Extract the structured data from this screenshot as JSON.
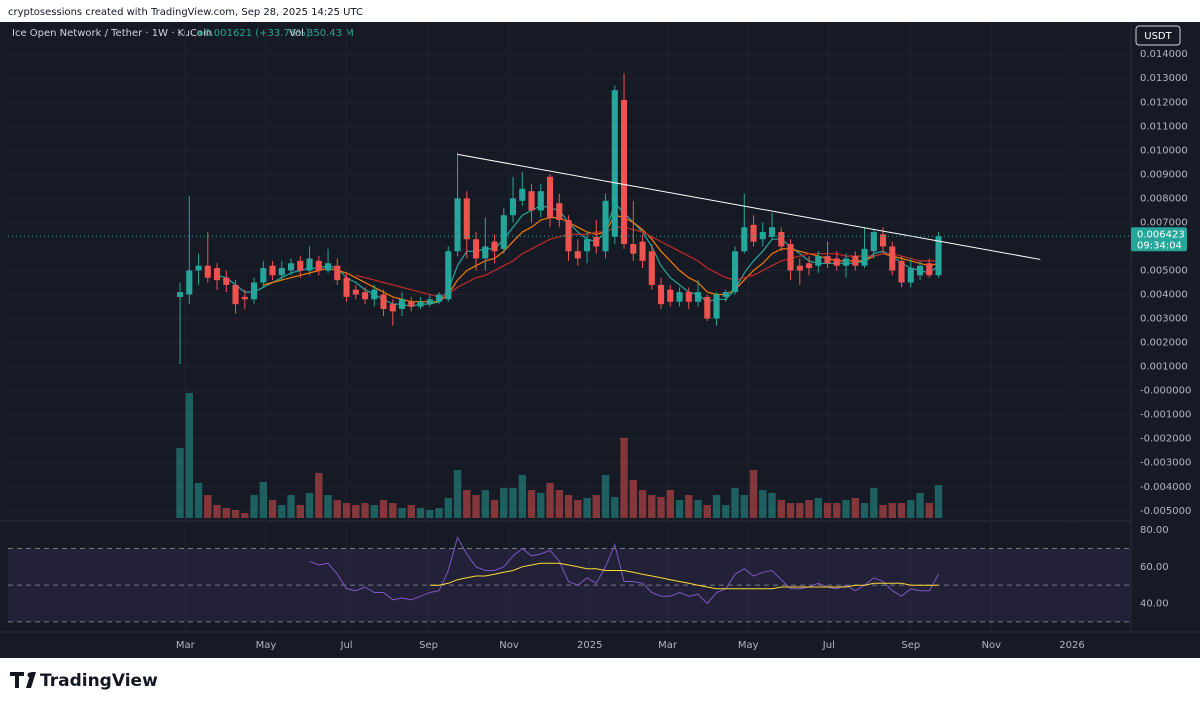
{
  "header": {
    "attribution": "cryptosessions created with TradingView.com, Sep 28, 2025 14:25 UTC",
    "symbol": "Ice Open Network / Tether · 1W · KuCoin",
    "change": "+0.001621 (+33.76%)",
    "volume_label": "Vol",
    "volume": "350.43 M",
    "currency": "USDT",
    "countdown": "09:34:04",
    "brand": "TradingView"
  },
  "chart_data": {
    "type": "candlestick",
    "open": [
      0.0039,
      0.004,
      0.005,
      0.0052,
      0.0051,
      0.0047,
      0.0044,
      0.0039,
      0.0038,
      0.0045,
      0.0052,
      0.0048,
      0.005,
      0.0054,
      0.005,
      0.0054,
      0.005,
      0.0052,
      0.0047,
      0.0042,
      0.0041,
      0.0038,
      0.004,
      0.0036,
      0.0034,
      0.0037,
      0.0035,
      0.0036,
      0.0037,
      0.0038,
      0.0058,
      0.008,
      0.0063,
      0.0055,
      0.0062,
      0.0059,
      0.0073,
      0.0079,
      0.0083,
      0.0075,
      0.0089,
      0.0078,
      0.0071,
      0.0058,
      0.0058,
      0.0064,
      0.0058,
      0.0064,
      0.0121,
      0.0061,
      0.0062,
      0.0058,
      0.0044,
      0.0042,
      0.0037,
      0.0041,
      0.0037,
      0.0039,
      0.003,
      0.0039,
      0.0041,
      0.0058,
      0.0069,
      0.0063,
      0.0064,
      0.0066,
      0.0061,
      0.0052,
      0.0053,
      0.0052,
      0.0056,
      0.0055,
      0.0052,
      0.0056,
      0.0052,
      0.0058,
      0.0065,
      0.006,
      0.0054,
      0.0045,
      0.0048,
      0.0053,
      0.004802
    ],
    "high": [
      0.0045,
      0.0081,
      0.0057,
      0.0066,
      0.0053,
      0.005,
      0.0046,
      0.0042,
      0.0047,
      0.0054,
      0.0054,
      0.0054,
      0.0055,
      0.0056,
      0.006,
      0.0056,
      0.0059,
      0.0055,
      0.0049,
      0.0044,
      0.0043,
      0.0044,
      0.0042,
      0.0038,
      0.0041,
      0.0039,
      0.0039,
      0.004,
      0.0041,
      0.006,
      0.0099,
      0.0083,
      0.0066,
      0.0072,
      0.0065,
      0.0076,
      0.0089,
      0.0091,
      0.0086,
      0.0086,
      0.009,
      0.0082,
      0.0073,
      0.0063,
      0.0066,
      0.0071,
      0.0082,
      0.0127,
      0.0132,
      0.0079,
      0.0065,
      0.0061,
      0.0047,
      0.0044,
      0.0043,
      0.0043,
      0.0046,
      0.004,
      0.0041,
      0.0042,
      0.006,
      0.0082,
      0.0073,
      0.007,
      0.0074,
      0.0068,
      0.0063,
      0.0055,
      0.0056,
      0.0058,
      0.0062,
      0.0058,
      0.0057,
      0.0058,
      0.0068,
      0.0067,
      0.0068,
      0.0062,
      0.0056,
      0.0055,
      0.0054,
      0.0055,
      0.0066
    ],
    "low": [
      0.0011,
      0.0036,
      0.0044,
      0.0045,
      0.0042,
      0.0041,
      0.0032,
      0.0034,
      0.0036,
      0.0043,
      0.0046,
      0.0046,
      0.0048,
      0.0047,
      0.0048,
      0.0048,
      0.0049,
      0.0044,
      0.0037,
      0.0038,
      0.0036,
      0.0035,
      0.0031,
      0.0027,
      0.0031,
      0.0033,
      0.0034,
      0.0035,
      0.0036,
      0.0037,
      0.0056,
      0.0055,
      0.005,
      0.005,
      0.0053,
      0.0057,
      0.007,
      0.0077,
      0.007,
      0.0072,
      0.0068,
      0.0068,
      0.0054,
      0.0052,
      0.0053,
      0.0057,
      0.0055,
      0.0061,
      0.0059,
      0.0054,
      0.0051,
      0.0042,
      0.0034,
      0.0035,
      0.0035,
      0.0034,
      0.0035,
      0.0029,
      0.0027,
      0.0037,
      0.004,
      0.0057,
      0.006,
      0.006,
      0.0063,
      0.0058,
      0.0046,
      0.0044,
      0.0048,
      0.0049,
      0.0051,
      0.005,
      0.0047,
      0.005,
      0.0051,
      0.0055,
      0.0057,
      0.0048,
      0.0043,
      0.0043,
      0.0046,
      0.0047,
      0.0047
    ],
    "close": [
      0.0041,
      0.005,
      0.0052,
      0.0047,
      0.0046,
      0.0044,
      0.0036,
      0.0038,
      0.0045,
      0.0051,
      0.0048,
      0.0051,
      0.0053,
      0.005,
      0.0055,
      0.005,
      0.0053,
      0.0046,
      0.0039,
      0.004,
      0.0038,
      0.0042,
      0.0034,
      0.0033,
      0.0038,
      0.0035,
      0.0037,
      0.0038,
      0.004,
      0.0058,
      0.008,
      0.0063,
      0.0055,
      0.006,
      0.0058,
      0.0073,
      0.008,
      0.0084,
      0.0075,
      0.0083,
      0.0072,
      0.0071,
      0.0058,
      0.0055,
      0.0063,
      0.006,
      0.0079,
      0.0125,
      0.0061,
      0.0057,
      0.0054,
      0.0044,
      0.0036,
      0.0037,
      0.0041,
      0.0037,
      0.0041,
      0.003,
      0.004,
      0.0041,
      0.0058,
      0.0068,
      0.0062,
      0.0066,
      0.0068,
      0.006,
      0.005,
      0.005,
      0.0051,
      0.0056,
      0.0053,
      0.0052,
      0.0055,
      0.0052,
      0.0059,
      0.0066,
      0.006,
      0.005,
      0.0045,
      0.0051,
      0.0052,
      0.0048,
      0.006423
    ],
    "volume": [
      743,
      1327,
      372,
      244,
      138,
      106,
      85,
      53,
      244,
      382,
      191,
      138,
      244,
      138,
      266,
      478,
      244,
      191,
      159,
      138,
      159,
      138,
      191,
      159,
      106,
      138,
      106,
      85,
      106,
      212,
      510,
      297,
      244,
      297,
      191,
      319,
      319,
      457,
      297,
      266,
      372,
      297,
      244,
      191,
      212,
      244,
      457,
      223,
      850,
      404,
      297,
      244,
      223,
      297,
      191,
      244,
      191,
      138,
      244,
      138,
      319,
      244,
      510,
      297,
      266,
      191,
      159,
      159,
      191,
      212,
      159,
      159,
      191,
      212,
      159,
      319,
      138,
      159,
      159,
      191,
      266,
      159,
      350.43
    ],
    "up_color": "#26a69a",
    "down_color": "#ef5350",
    "ylim": [
      -0.0053,
      0.0143
    ],
    "yticks": [
      {
        "value": 0.014,
        "label": "0.014000"
      },
      {
        "value": 0.013,
        "label": "0.013000"
      },
      {
        "value": 0.012,
        "label": "0.012000"
      },
      {
        "value": 0.011,
        "label": "0.011000"
      },
      {
        "value": 0.01,
        "label": "0.010000"
      },
      {
        "value": 0.009,
        "label": "0.009000"
      },
      {
        "value": 0.008,
        "label": "0.008000"
      },
      {
        "value": 0.007,
        "label": "0.007000"
      },
      {
        "value": 0.005,
        "label": "0.005000"
      },
      {
        "value": 0.004,
        "label": "0.004000"
      },
      {
        "value": 0.003,
        "label": "0.003000"
      },
      {
        "value": 0.002,
        "label": "0.002000"
      },
      {
        "value": 0.001,
        "label": "0.001000"
      },
      {
        "value": 0,
        "label": "-0.000000"
      },
      {
        "value": -0.001,
        "label": "-0.001000"
      },
      {
        "value": -0.002,
        "label": "-0.002000"
      },
      {
        "value": -0.003,
        "label": "-0.003000"
      },
      {
        "value": -0.004,
        "label": "-0.004000"
      },
      {
        "value": -0.005,
        "label": "-0.005000"
      }
    ],
    "xlim": [
      -18.6,
      102.7
    ],
    "xticks": [
      {
        "value": 0.57,
        "label": "Mar"
      },
      {
        "value": 9.29,
        "label": "May"
      },
      {
        "value": 18,
        "label": "Jul"
      },
      {
        "value": 26.86,
        "label": "Sep"
      },
      {
        "value": 35.57,
        "label": "Nov"
      },
      {
        "value": 44.29,
        "label": "2025"
      },
      {
        "value": 52.71,
        "label": "Mar"
      },
      {
        "value": 61.43,
        "label": "May"
      },
      {
        "value": 70.14,
        "label": "Jul"
      },
      {
        "value": 79,
        "label": "Sep"
      },
      {
        "value": 87.71,
        "label": "Nov"
      },
      {
        "value": 96.43,
        "label": "2026"
      }
    ],
    "grid": true,
    "moving_averages": [
      {
        "color": "#26a69a",
        "values": [
          null,
          null,
          null,
          null,
          0.0048,
          0.0047,
          0.0044,
          0.0041,
          0.0041,
          0.0043,
          0.0045,
          0.0047,
          0.0049,
          0.005,
          0.0051,
          0.0051,
          0.0052,
          0.0051,
          0.0047,
          0.0045,
          0.0042,
          0.004,
          0.0038,
          0.0036,
          0.0036,
          0.0035,
          0.0036,
          0.0036,
          0.0037,
          0.0042,
          0.0052,
          0.0058,
          0.0058,
          0.0059,
          0.0059,
          0.0063,
          0.0068,
          0.0073,
          0.0075,
          0.0077,
          0.0076,
          0.0075,
          0.007,
          0.0066,
          0.0063,
          0.0062,
          0.0066,
          0.0078,
          0.0074,
          0.007,
          0.0066,
          0.006,
          0.0052,
          0.0047,
          0.0044,
          0.0041,
          0.004,
          0.0037,
          0.0038,
          0.0038,
          0.0042,
          0.0049,
          0.0054,
          0.0058,
          0.0063,
          0.0063,
          0.006,
          0.0057,
          0.0054,
          0.0053,
          0.0053,
          0.0053,
          0.0053,
          0.0053,
          0.0054,
          0.0057,
          0.0058,
          0.0056,
          0.0053,
          0.0051,
          0.005,
          0.0049,
          0.0052
        ]
      },
      {
        "color": "#f57c00",
        "values": [
          null,
          null,
          null,
          null,
          null,
          null,
          null,
          null,
          null,
          0.0044,
          0.0045,
          0.0046,
          0.0047,
          0.0048,
          0.0049,
          0.005,
          0.0051,
          0.005,
          0.0049,
          0.0047,
          0.0045,
          0.0043,
          0.0041,
          0.0039,
          0.0038,
          0.0037,
          0.0037,
          0.0037,
          0.0037,
          0.004,
          0.0046,
          0.005,
          0.0052,
          0.0054,
          0.0055,
          0.0058,
          0.0062,
          0.0066,
          0.0068,
          0.0071,
          0.0072,
          0.0072,
          0.007,
          0.0068,
          0.0066,
          0.0065,
          0.0066,
          0.0073,
          0.0072,
          0.007,
          0.0067,
          0.0063,
          0.0058,
          0.0054,
          0.005,
          0.0047,
          0.0045,
          0.0041,
          0.004,
          0.004,
          0.0042,
          0.0046,
          0.005,
          0.0053,
          0.0057,
          0.0059,
          0.0059,
          0.0058,
          0.0057,
          0.0056,
          0.0055,
          0.0054,
          0.0054,
          0.0054,
          0.0054,
          0.0056,
          0.0057,
          0.0056,
          0.0055,
          0.0054,
          0.0053,
          0.0052,
          0.0053
        ]
      },
      {
        "color": "#c62828",
        "values": [
          null,
          null,
          null,
          null,
          null,
          null,
          null,
          null,
          null,
          null,
          null,
          null,
          null,
          null,
          null,
          null,
          null,
          null,
          null,
          0.0048,
          0.0047,
          0.0046,
          0.0045,
          0.0044,
          0.0043,
          0.0042,
          0.0041,
          0.004,
          0.0039,
          0.004,
          0.0043,
          0.0045,
          0.0047,
          0.0048,
          0.005,
          0.0052,
          0.0054,
          0.0057,
          0.0059,
          0.0061,
          0.0063,
          0.0064,
          0.0065,
          0.0065,
          0.0065,
          0.0066,
          0.0066,
          0.0068,
          0.0068,
          0.0067,
          0.0066,
          0.0064,
          0.0062,
          0.006,
          0.0058,
          0.0056,
          0.0054,
          0.0051,
          0.0049,
          0.0047,
          0.0046,
          0.0047,
          0.0048,
          0.005,
          0.0052,
          0.0054,
          0.0055,
          0.0056,
          0.0057,
          0.0057,
          0.0057,
          0.0057,
          0.0056,
          0.0056,
          0.0056,
          0.0056,
          0.0057,
          0.0057,
          0.0056,
          0.0055,
          0.0054,
          0.0054,
          0.0054
        ]
      }
    ],
    "trendline": {
      "x": [
        30,
        93
      ],
      "values": [
        0.00983,
        0.00546
      ],
      "color": "#ffffff"
    },
    "rsi": {
      "color": "#7e57c2",
      "ma_color": "#fdd835",
      "values": [
        null,
        null,
        null,
        null,
        null,
        null,
        null,
        null,
        null,
        null,
        null,
        null,
        null,
        null,
        63,
        61,
        62,
        56,
        48,
        47,
        49,
        46,
        46,
        42,
        43,
        42,
        44,
        46,
        47,
        58,
        76,
        67,
        60,
        58,
        58,
        60,
        66,
        70,
        66,
        67,
        69,
        63,
        52,
        50,
        54,
        51,
        60,
        72,
        52,
        52,
        51,
        46,
        44,
        44,
        46,
        44,
        45,
        40,
        46,
        48,
        56,
        59,
        55,
        57,
        58,
        53,
        48,
        48,
        49,
        51,
        49,
        48,
        50,
        47,
        50,
        54,
        52,
        47,
        44,
        48,
        47,
        47,
        56
      ],
      "ma_values": [
        null,
        null,
        null,
        null,
        null,
        null,
        null,
        null,
        null,
        null,
        null,
        null,
        null,
        null,
        null,
        null,
        null,
        null,
        null,
        null,
        null,
        null,
        null,
        null,
        null,
        null,
        null,
        50,
        50,
        51,
        53,
        54,
        55,
        55,
        56,
        57,
        58,
        60,
        61,
        62,
        62,
        62,
        61,
        60,
        59,
        59,
        58,
        58,
        58,
        57,
        56,
        55,
        54,
        53,
        52,
        51,
        50,
        49,
        48,
        48,
        48,
        48,
        48,
        48,
        48,
        49,
        49,
        49,
        49,
        49,
        49,
        49,
        49,
        50,
        50,
        51,
        51,
        51,
        51,
        50,
        50,
        50,
        50
      ],
      "ylim": [
        25,
        85
      ],
      "yticks": [
        {
          "value": 80,
          "label": "80.00"
        },
        {
          "value": 60,
          "label": "60.00"
        },
        {
          "value": 40,
          "label": "40.00"
        }
      ],
      "levels": [
        70,
        50,
        30
      ]
    }
  }
}
